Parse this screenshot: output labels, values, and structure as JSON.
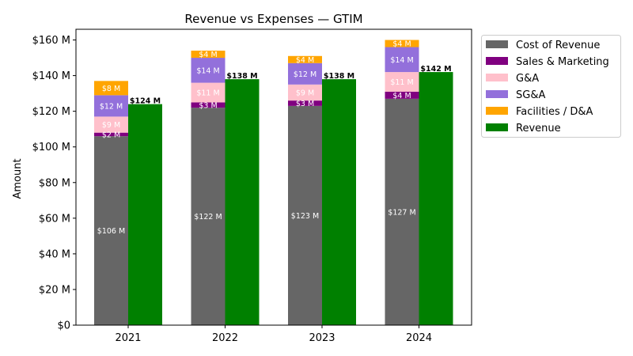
{
  "chart_data": {
    "type": "bar",
    "title": "Revenue vs Expenses — GTIM",
    "xlabel": "",
    "ylabel": "Amount",
    "ylim": [
      0,
      166
    ],
    "yticks": [
      0,
      20,
      40,
      60,
      80,
      100,
      120,
      140,
      160
    ],
    "ytick_labels": [
      "$0",
      "$20 M",
      "$40 M",
      "$60 M",
      "$80 M",
      "$100 M",
      "$120 M",
      "$140 M",
      "$160 M"
    ],
    "categories": [
      "2021",
      "2022",
      "2023",
      "2024"
    ],
    "stacked_series": [
      {
        "name": "Cost of Revenue",
        "color": "#666666",
        "values": [
          106,
          122,
          123,
          127
        ],
        "labels": [
          "$106 M",
          "$122 M",
          "$123 M",
          "$127 M"
        ]
      },
      {
        "name": "Sales & Marketing",
        "color": "#800080",
        "values": [
          2,
          3,
          3,
          4
        ],
        "labels": [
          "$2 M",
          "$3 M",
          "$3 M",
          "$4 M"
        ]
      },
      {
        "name": "G&A",
        "color": "#ffc0cb",
        "values": [
          9,
          11,
          9,
          11
        ],
        "labels": [
          "$9 M",
          "$11 M",
          "$9 M",
          "$11 M"
        ]
      },
      {
        "name": "SG&A",
        "color": "#9370db",
        "values": [
          12,
          14,
          12,
          14
        ],
        "labels": [
          "$12 M",
          "$14 M",
          "$12 M",
          "$14 M"
        ]
      },
      {
        "name": "Facilities / D&A",
        "color": "#ffa500",
        "values": [
          8,
          4,
          4,
          4
        ],
        "labels": [
          "$8 M",
          "$4 M",
          "$4 M",
          "$4 M"
        ]
      }
    ],
    "revenue_series": {
      "name": "Revenue",
      "color": "#008000",
      "values": [
        124,
        138,
        138,
        142
      ],
      "labels": [
        "$124 M",
        "$138 M",
        "$138 M",
        "$142 M"
      ]
    },
    "legend_position": "outside-top-right",
    "grid": false
  }
}
